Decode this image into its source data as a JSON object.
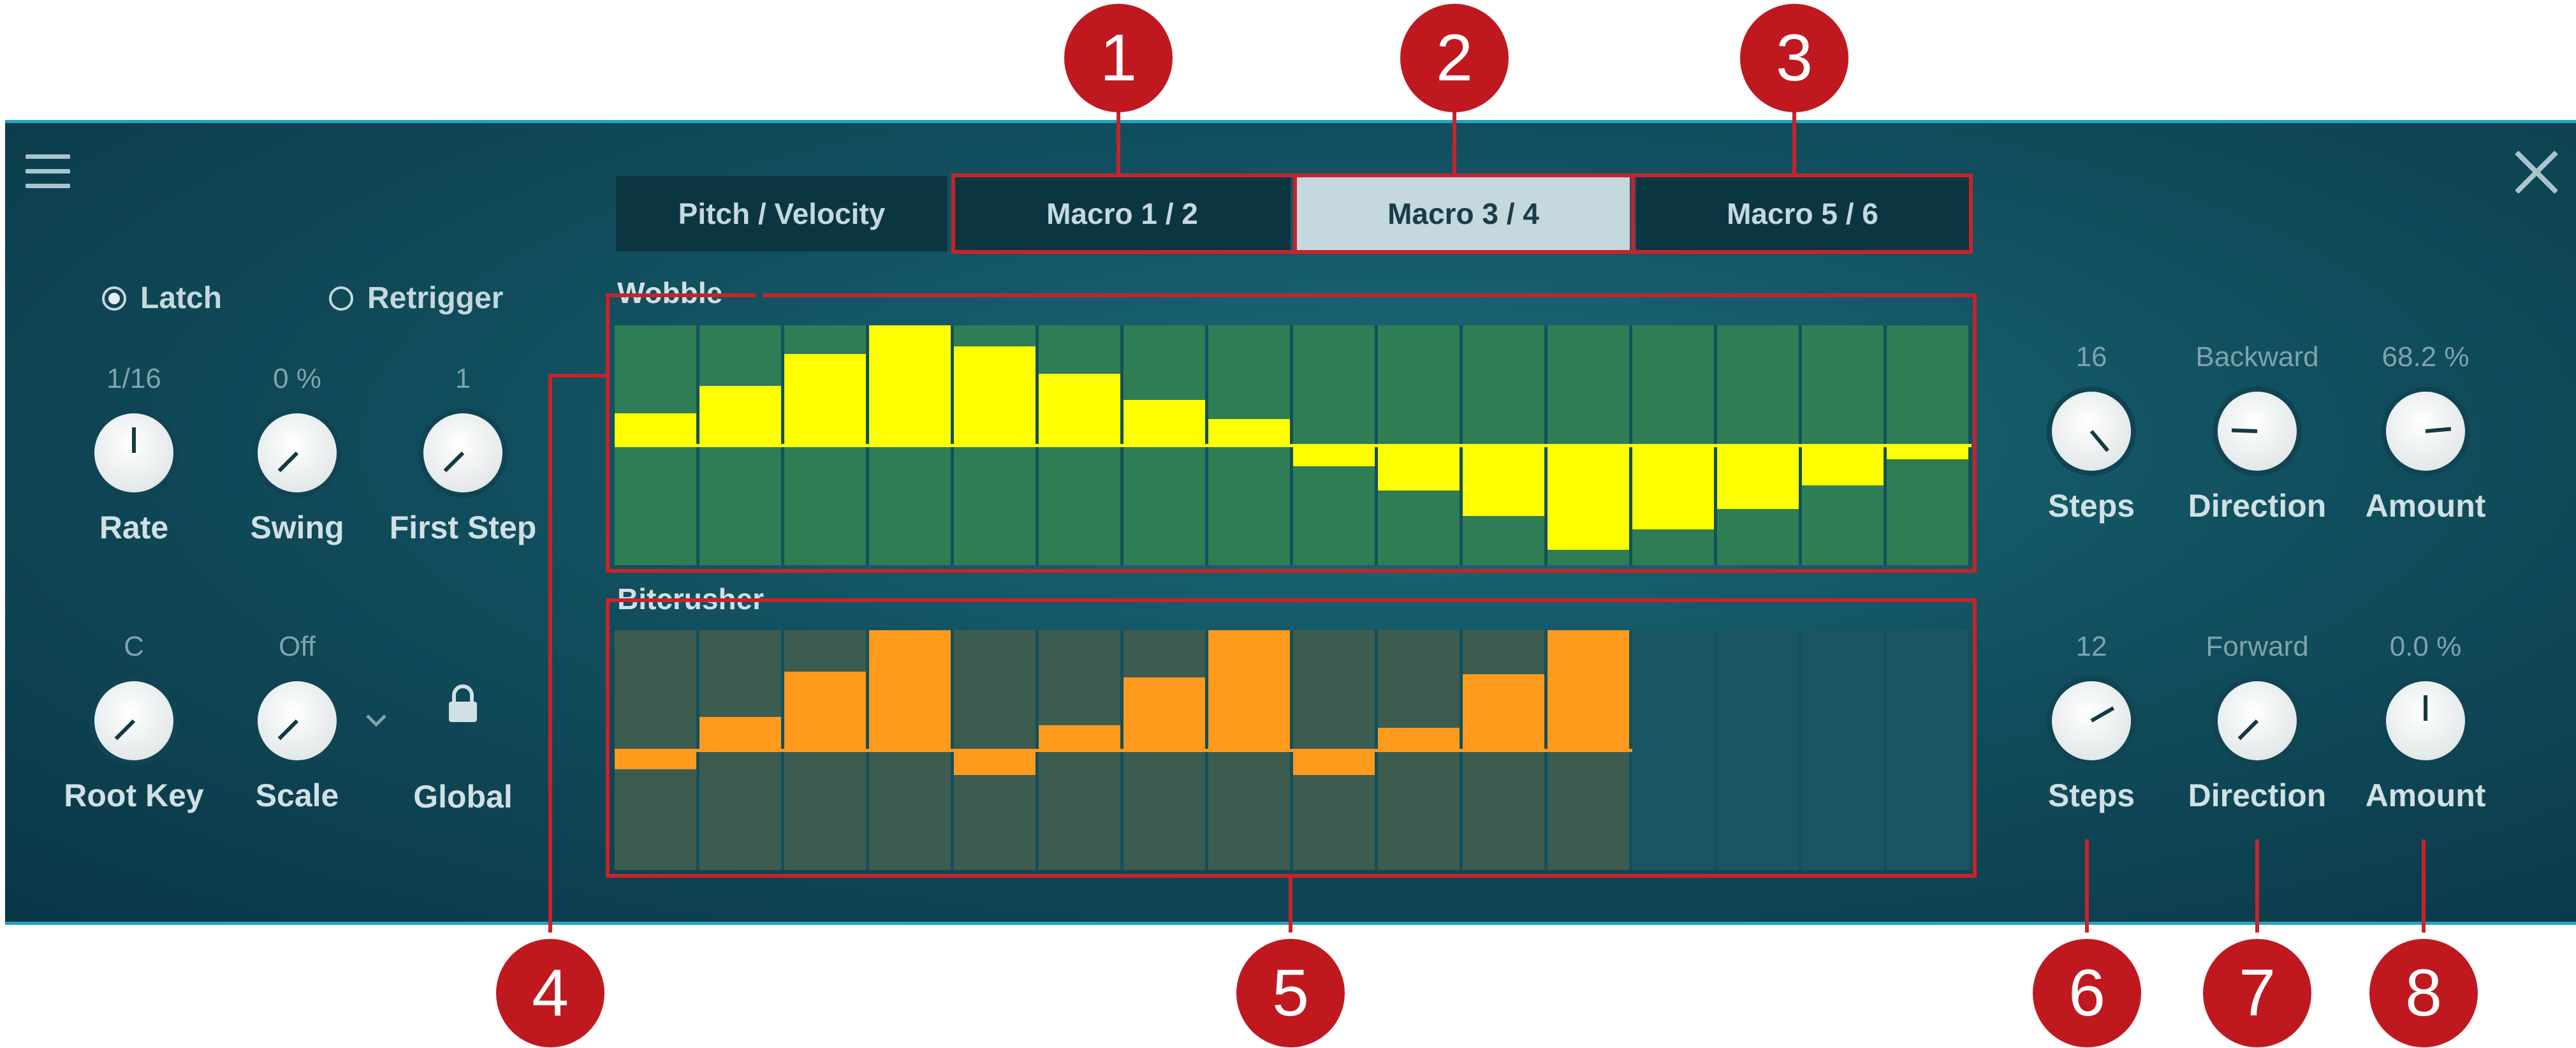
{
  "tabs": [
    {
      "label": "Pitch / Velocity",
      "active": false
    },
    {
      "label": "Macro 1 / 2",
      "active": false
    },
    {
      "label": "Macro 3 / 4",
      "active": true
    },
    {
      "label": "Macro 5 / 6",
      "active": false
    }
  ],
  "mode": {
    "latch_label": "Latch",
    "retrigger_label": "Retrigger",
    "selected": "Latch"
  },
  "left_knobs": {
    "rate": {
      "value": "1/16",
      "label": "Rate"
    },
    "swing": {
      "value": "0 %",
      "label": "Swing"
    },
    "first_step": {
      "value": "1",
      "label": "First Step"
    },
    "root_key": {
      "value": "C",
      "label": "Root Key"
    },
    "scale": {
      "value": "Off",
      "label": "Scale"
    },
    "global": {
      "label": "Global"
    }
  },
  "macro_top": {
    "title": "Wobble",
    "steps": {
      "value": "16",
      "label": "Steps"
    },
    "direction": {
      "value": "Backward",
      "label": "Direction"
    },
    "amount": {
      "value": "68.2 %",
      "label": "Amount"
    }
  },
  "macro_bottom": {
    "title": "Bitcrusher",
    "steps": {
      "value": "12",
      "label": "Steps"
    },
    "direction": {
      "value": "Forward",
      "label": "Direction"
    },
    "amount": {
      "value": "0.0 %",
      "label": "Amount"
    }
  },
  "sequences": {
    "wobble": {
      "steps_total": 16,
      "active_steps": 16,
      "color": "#ffff00",
      "values": [
        0.26,
        0.49,
        0.76,
        1.0,
        0.82,
        0.59,
        0.37,
        0.21,
        -0.19,
        -0.39,
        -0.61,
        -0.89,
        -0.72,
        -0.55,
        -0.35,
        -0.13
      ]
    },
    "bitcrusher": {
      "steps_total": 16,
      "active_steps": 12,
      "color": "#ff9a1c",
      "values": [
        -0.17,
        0.27,
        0.65,
        1.0,
        -0.22,
        0.2,
        0.6,
        1.0,
        -0.22,
        0.18,
        0.63,
        1.0,
        0,
        0,
        0,
        0
      ]
    }
  },
  "callouts": [
    "1",
    "2",
    "3",
    "4",
    "5",
    "6",
    "7",
    "8"
  ],
  "colors": {
    "accent": "#c0181f",
    "panel": "#114f5e",
    "wobble_bar": "#ffff00",
    "bitcrusher_bar": "#ff9a1c"
  },
  "icons": [
    "menu-icon",
    "close-icon",
    "chevron-down-icon",
    "lock-icon"
  ]
}
